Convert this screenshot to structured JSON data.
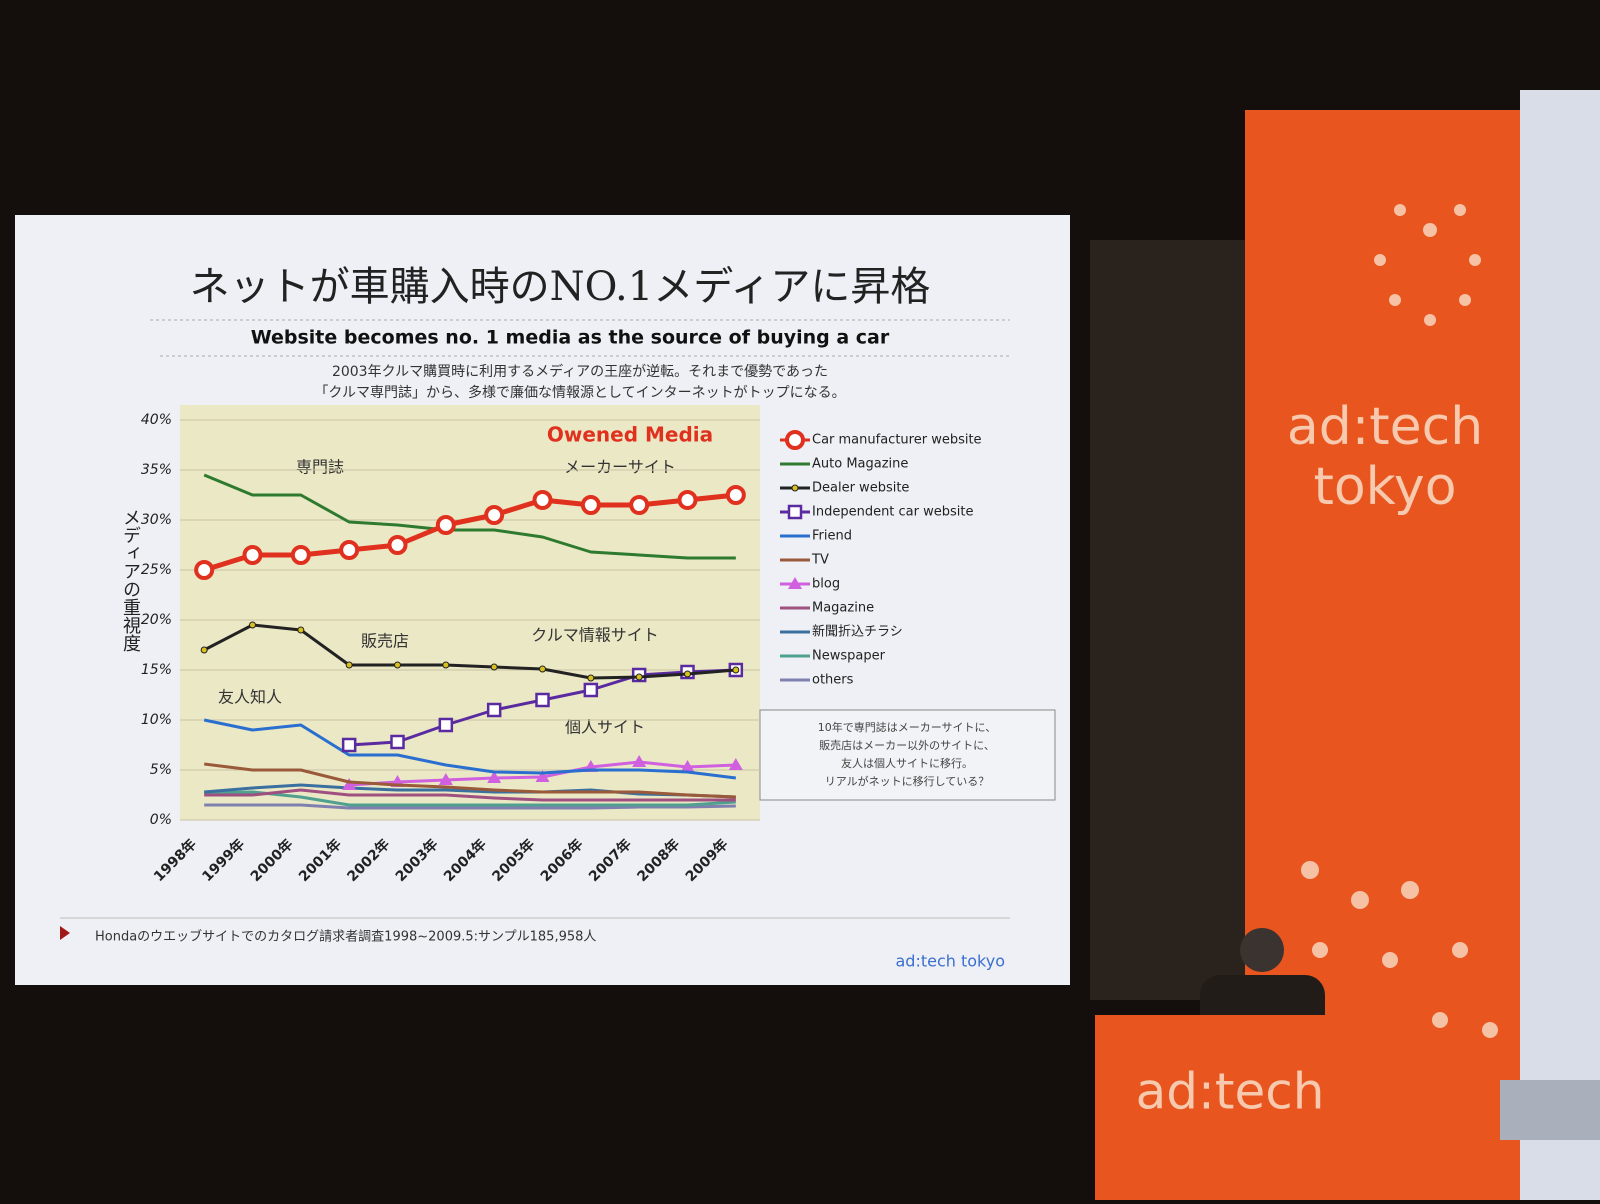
{
  "chart_data": {
    "type": "line",
    "title": "ネットが車購入時のNO.1メディアに昇格",
    "subtitle": "Website becomes no. 1 media as the source of buying a car",
    "description": [
      "2003年クルマ購買時に利用するメディアの王座が逆転。それまで優勢であった",
      "「クルマ専門誌」から、多様で廉価な情報源としてインターネットがトップになる。"
    ],
    "y_label": "メディアの重視度",
    "categories": [
      "1998年",
      "1999年",
      "2000年",
      "2001年",
      "2002年",
      "2003年",
      "2004年",
      "2005年",
      "2006年",
      "2007年",
      "2008年",
      "2009年"
    ],
    "ylim": [
      0,
      40
    ],
    "yticks": [
      {
        "value": 0,
        "label": "0%"
      },
      {
        "value": 5,
        "label": "5%"
      },
      {
        "value": 10,
        "label": "10%"
      },
      {
        "value": 15,
        "label": "15%"
      },
      {
        "value": 20,
        "label": "20%"
      },
      {
        "value": 25,
        "label": "25%"
      },
      {
        "value": 30,
        "label": "30%"
      },
      {
        "value": 35,
        "label": "35%"
      },
      {
        "value": 40,
        "label": "40%"
      }
    ],
    "grid": true,
    "series": [
      {
        "name": "Car manufacturer website",
        "color": "#e0301e",
        "marker": "circle",
        "values": [
          25,
          26.5,
          26.5,
          27,
          27.5,
          29.5,
          30.5,
          32,
          31.5,
          31.5,
          32,
          32.5
        ]
      },
      {
        "name": "Auto Magazine",
        "color": "#2e7a2e",
        "marker": "none",
        "values": [
          34.5,
          32.5,
          32.5,
          29.8,
          29.5,
          29,
          29,
          28.3,
          26.8,
          26.5,
          26.2,
          26.2
        ]
      },
      {
        "name": "Dealer website",
        "color": "#222222",
        "marker": "dot",
        "values": [
          17,
          19.5,
          19,
          15.5,
          15.5,
          15.5,
          15.3,
          15.1,
          14.2,
          14.3,
          14.6,
          15
        ]
      },
      {
        "name": "Independent car website",
        "color": "#5a2aa0",
        "marker": "square",
        "values": [
          null,
          null,
          null,
          7.5,
          7.8,
          9.5,
          11,
          12,
          13,
          14.5,
          14.8,
          15
        ]
      },
      {
        "name": "Friend",
        "color": "#2a6fd0",
        "marker": "none",
        "values": [
          10,
          9,
          9.5,
          6.5,
          6.5,
          5.5,
          4.8,
          4.7,
          5,
          5,
          4.8,
          4.2
        ]
      },
      {
        "name": "TV",
        "color": "#9a5a3a",
        "marker": "none",
        "values": [
          5.6,
          5,
          5,
          3.8,
          3.5,
          3.3,
          3,
          2.8,
          2.8,
          2.8,
          2.5,
          2.3
        ]
      },
      {
        "name": "blog",
        "color": "#d060e0",
        "marker": "triangle",
        "values": [
          null,
          null,
          null,
          3.5,
          3.8,
          4,
          4.2,
          4.3,
          5.3,
          5.8,
          5.3,
          5.5
        ]
      },
      {
        "name": "Magazine",
        "color": "#a05080",
        "marker": "none",
        "values": [
          2.5,
          2.5,
          3,
          2.5,
          2.5,
          2.5,
          2.2,
          2,
          2,
          2,
          2,
          2
        ]
      },
      {
        "name": "新聞折込チラシ",
        "color": "#3a70a0",
        "marker": "none",
        "values": [
          2.8,
          3.2,
          3.5,
          3.2,
          3,
          3,
          2.8,
          2.8,
          3,
          2.6,
          2.5,
          2.3
        ]
      },
      {
        "name": "Newspaper",
        "color": "#50a090",
        "marker": "none",
        "values": [
          2.7,
          2.8,
          2.3,
          1.5,
          1.5,
          1.5,
          1.5,
          1.5,
          1.5,
          1.5,
          1.5,
          1.8
        ]
      },
      {
        "name": "others",
        "color": "#8080b0",
        "marker": "none",
        "values": [
          1.5,
          1.5,
          1.5,
          1.2,
          1.2,
          1.2,
          1.2,
          1.2,
          1.2,
          1.3,
          1.3,
          1.4
        ]
      }
    ],
    "annotations": [
      "Owened Media",
      "専門誌",
      "メーカーサイト",
      "販売店",
      "クルマ情報サイト",
      "友人知人",
      "個人サイト"
    ],
    "note": [
      "10年で専門誌はメーカーサイトに、",
      "販売店はメーカー以外のサイトに、",
      "友人は個人サイトに移行。",
      "リアルがネットに移行している？"
    ],
    "source": "Hondaのウエッブサイトでのカタログ請求者調査1998~2009.5:サンプル185,958人"
  },
  "scene": {
    "slide_logo": "ad:tech tokyo",
    "banner_logo": [
      "ad:tech",
      "tokyo"
    ],
    "podium_logo": "ad:tech"
  }
}
